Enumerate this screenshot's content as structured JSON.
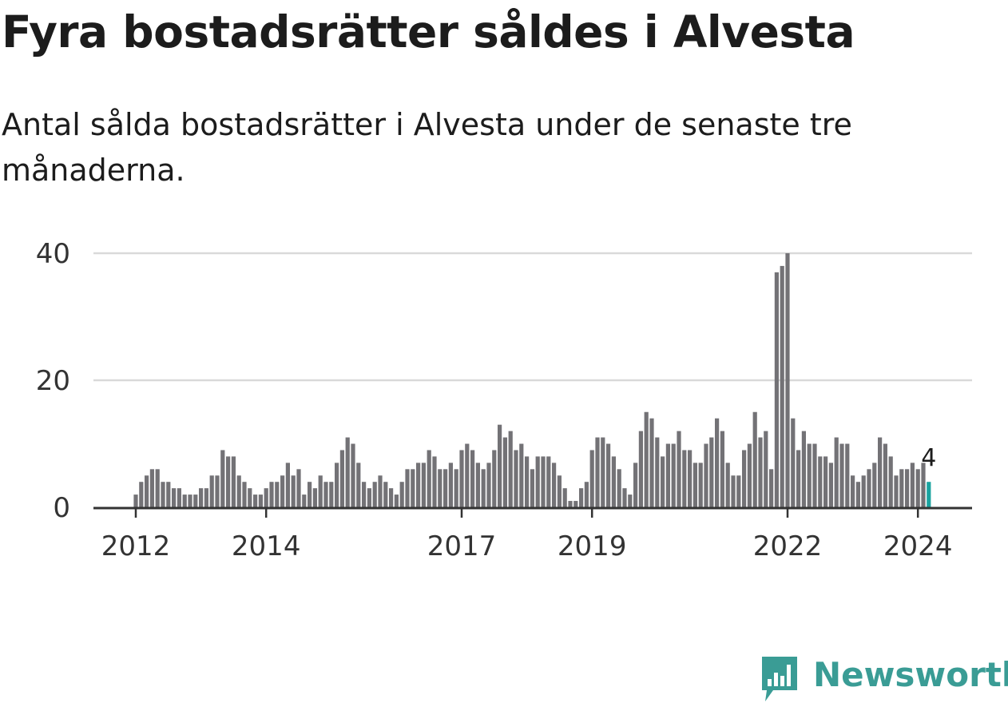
{
  "header": {
    "title": "Fyra bostadsrätter såldes i Alvesta",
    "subtitle": "Antal sålda bostadsrätter i Alvesta under de senaste tre månaderna."
  },
  "colors": {
    "bar": "#737276",
    "highlight": "#1aa3a0",
    "grid": "#d9d9d9",
    "axis": "#333333",
    "brand": "#3a9c95"
  },
  "brand": {
    "name": "Newsworthy",
    "icon": "bar-chart-speech-bubble-icon"
  },
  "chart_data": {
    "type": "bar",
    "x_start": "2012-01",
    "x_end": "2024-03",
    "x_tick_labels": [
      {
        "label": "2012",
        "date": "2012-01"
      },
      {
        "label": "2014",
        "date": "2014-01"
      },
      {
        "label": "2017",
        "date": "2017-01"
      },
      {
        "label": "2019",
        "date": "2019-01"
      },
      {
        "label": "2022",
        "date": "2022-01"
      },
      {
        "label": "2024",
        "date": "2024-01"
      }
    ],
    "y_ticks": [
      0,
      20,
      40
    ],
    "ylim": [
      0,
      40
    ],
    "grid": true,
    "values": [
      2,
      4,
      5,
      6,
      6,
      4,
      4,
      3,
      3,
      2,
      2,
      2,
      3,
      3,
      5,
      5,
      9,
      8,
      8,
      5,
      4,
      3,
      2,
      2,
      3,
      4,
      4,
      5,
      7,
      5,
      6,
      2,
      4,
      3,
      5,
      4,
      4,
      7,
      9,
      11,
      10,
      7,
      4,
      3,
      4,
      5,
      4,
      3,
      2,
      4,
      6,
      6,
      7,
      7,
      9,
      8,
      6,
      6,
      7,
      6,
      9,
      10,
      9,
      7,
      6,
      7,
      9,
      13,
      11,
      12,
      9,
      10,
      8,
      6,
      8,
      8,
      8,
      7,
      5,
      3,
      1,
      1,
      3,
      4,
      9,
      11,
      11,
      10,
      8,
      6,
      3,
      2,
      7,
      12,
      15,
      14,
      11,
      8,
      10,
      10,
      12,
      9,
      9,
      7,
      7,
      10,
      11,
      14,
      12,
      7,
      5,
      5,
      9,
      10,
      15,
      11,
      12,
      6,
      37,
      38,
      40,
      14,
      9,
      12,
      10,
      10,
      8,
      8,
      7,
      11,
      10,
      10,
      5,
      4,
      5,
      6,
      7,
      11,
      10,
      8,
      5,
      6,
      6,
      7,
      6,
      7,
      4
    ],
    "highlight_last": true,
    "annotation": {
      "text": "4"
    }
  }
}
